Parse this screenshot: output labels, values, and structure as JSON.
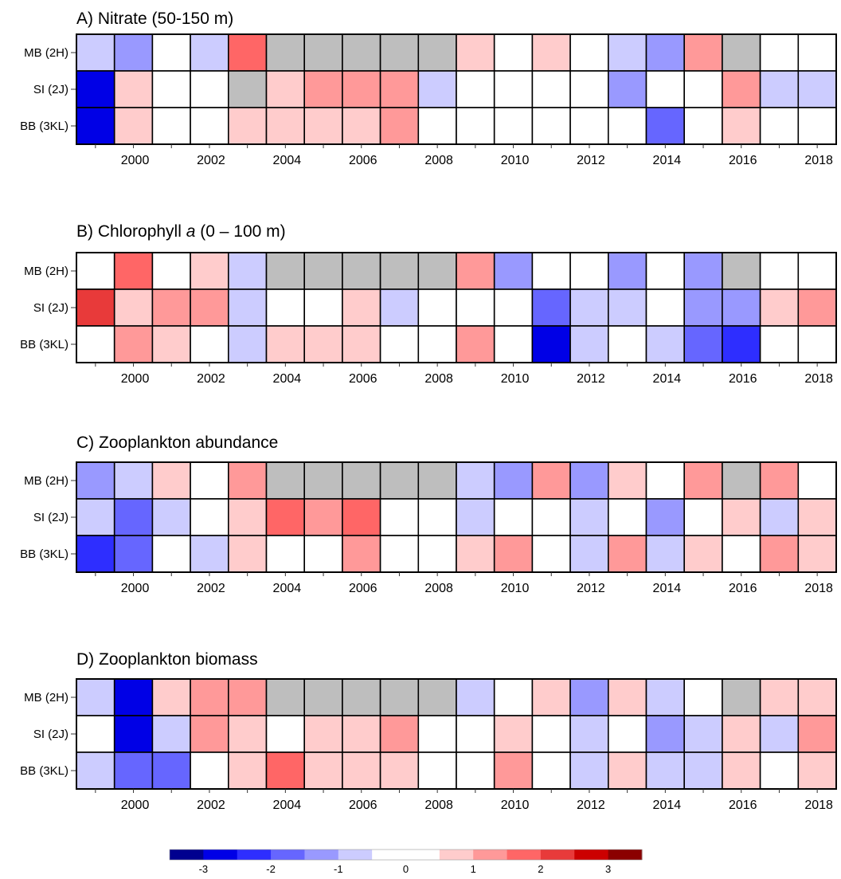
{
  "chart_data": {
    "type": "heatmap",
    "years": [
      1999,
      2000,
      2001,
      2002,
      2003,
      2004,
      2005,
      2006,
      2007,
      2008,
      2009,
      2010,
      2011,
      2012,
      2013,
      2014,
      2015,
      2016,
      2017,
      2018
    ],
    "x_tick_labels": [
      "2000",
      "2002",
      "2004",
      "2006",
      "2008",
      "2010",
      "2012",
      "2014",
      "2016",
      "2018"
    ],
    "x_tick_years": [
      2000,
      2002,
      2004,
      2006,
      2008,
      2010,
      2012,
      2014,
      2016,
      2018
    ],
    "missing_color": "#bebebe",
    "panels": [
      {
        "title": "A) Nitrate (50-150 m)",
        "rows": [
          {
            "label": "MB (2H)",
            "values": [
              -0.75,
              -1.25,
              0,
              -0.75,
              1.75,
              null,
              null,
              null,
              null,
              null,
              0.5,
              0,
              0.5,
              0,
              -0.75,
              -1.25,
              1.25,
              null,
              0,
              0
            ]
          },
          {
            "label": "SI (2J)",
            "values": [
              -2.75,
              0.5,
              0,
              0,
              null,
              0.5,
              1.25,
              1.25,
              1.25,
              -0.75,
              0,
              0,
              0,
              0,
              -1.25,
              0,
              0,
              1.25,
              -0.75,
              -0.75
            ]
          },
          {
            "label": "BB (3KL)",
            "values": [
              -2.75,
              0.5,
              0,
              0,
              0.5,
              0.5,
              0.5,
              0.5,
              1.25,
              0,
              0,
              0,
              0,
              0,
              0,
              -1.75,
              0,
              0.5,
              0,
              0
            ]
          }
        ]
      },
      {
        "title_main": "B) Chlorophyll ",
        "title_italic": "a",
        "title_rest": " (0 – 100 m)",
        "rows": [
          {
            "label": "MB (2H)",
            "values": [
              0,
              1.75,
              0,
              0.5,
              -0.75,
              null,
              null,
              null,
              null,
              null,
              1.25,
              -1.25,
              0,
              0,
              -1.25,
              0,
              -1.25,
              null,
              0,
              0
            ]
          },
          {
            "label": "SI (2J)",
            "values": [
              2.25,
              0.5,
              1.25,
              1.25,
              -0.75,
              0,
              0,
              0.5,
              -0.75,
              0,
              0,
              0,
              -1.75,
              -0.75,
              -0.75,
              0,
              -1.25,
              -1.25,
              0.5,
              1.25
            ]
          },
          {
            "label": "BB (3KL)",
            "values": [
              0,
              1.25,
              0.5,
              0,
              -0.75,
              0.5,
              0.5,
              0.5,
              0,
              0,
              1.25,
              0,
              -2.75,
              -0.75,
              0,
              -0.75,
              -1.75,
              -2.25,
              0,
              0
            ]
          }
        ]
      },
      {
        "title": "C) Zooplankton abundance",
        "rows": [
          {
            "label": "MB (2H)",
            "values": [
              -1.25,
              -0.75,
              0.5,
              0,
              1.25,
              null,
              null,
              null,
              null,
              null,
              -0.75,
              -1.25,
              1.25,
              -1.25,
              0.5,
              0,
              1.25,
              null,
              1.25,
              0
            ]
          },
          {
            "label": "SI (2J)",
            "values": [
              -0.75,
              -1.75,
              -0.75,
              0,
              0.5,
              1.75,
              1.25,
              1.75,
              0,
              0,
              -0.75,
              0,
              0,
              -0.75,
              0,
              -1.25,
              0,
              0.5,
              -0.75,
              0.5
            ]
          },
          {
            "label": "BB (3KL)",
            "values": [
              -2.25,
              -1.75,
              0,
              -0.75,
              0.5,
              0,
              0,
              1.25,
              0,
              0,
              0.5,
              1.25,
              0,
              -0.75,
              1.25,
              -0.75,
              0.5,
              0,
              1.25,
              0.5
            ]
          }
        ]
      },
      {
        "title": "D) Zooplankton biomass",
        "rows": [
          {
            "label": "MB (2H)",
            "values": [
              -0.75,
              -2.75,
              0.5,
              1.25,
              1.25,
              null,
              null,
              null,
              null,
              null,
              -0.75,
              0,
              0.5,
              -1.25,
              0.5,
              -0.75,
              0,
              null,
              0.5,
              0.5
            ]
          },
          {
            "label": "SI (2J)",
            "values": [
              0,
              -2.75,
              -0.75,
              1.25,
              0.5,
              0,
              0.5,
              0.5,
              1.25,
              0,
              0,
              0.5,
              0,
              -0.75,
              0,
              -1.25,
              -0.75,
              0.5,
              -0.75,
              1.25
            ]
          },
          {
            "label": "BB (3KL)",
            "values": [
              -0.75,
              -1.75,
              -1.75,
              0,
              0.5,
              1.75,
              0.5,
              0.5,
              0.5,
              0,
              0,
              1.25,
              0,
              -0.75,
              0.5,
              -0.75,
              -0.75,
              0.5,
              0,
              0.5
            ]
          }
        ]
      }
    ],
    "colorbar": {
      "breaks": [
        -3.5,
        -3,
        -2.5,
        -2,
        -1.5,
        -1,
        -0.5,
        0,
        0.5,
        1,
        1.5,
        2,
        2.5,
        3,
        3.5
      ],
      "colors": [
        "#00008f",
        "#0000e6",
        "#2e2eff",
        "#6666ff",
        "#9999ff",
        "#ccccff",
        "#ffffff",
        "#ffffff",
        "#ffcccc",
        "#ff9999",
        "#ff6666",
        "#e83a3a",
        "#cc0000",
        "#8b0000"
      ],
      "tick_labels": [
        "-3",
        "-2",
        "-1",
        "0",
        "1",
        "2",
        "3"
      ],
      "tick_values": [
        -3,
        -2,
        -1,
        0,
        1,
        2,
        3
      ]
    }
  }
}
